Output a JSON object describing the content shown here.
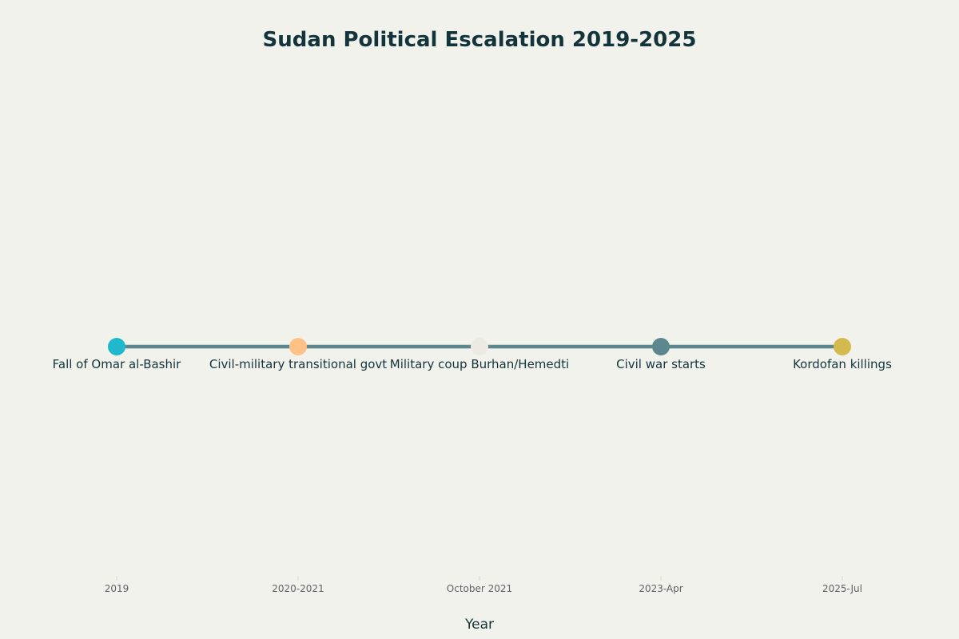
{
  "chart_data": {
    "type": "scatter",
    "title": "Sudan Political Escalation 2019-2025",
    "xlabel": "Year",
    "ylabel": "",
    "categories": [
      "2019",
      "2020-2021",
      "October 2021",
      "2023-Apr",
      "2025-Jul"
    ],
    "events": [
      "Fall of Omar al-Bashir",
      "Civil-military transitional govt",
      "Military coup Burhan/Hemedti",
      "Civil war starts",
      "Kordofan killings"
    ],
    "marker_colors": [
      "#1fb8cd",
      "#ffc185",
      "#eceae2",
      "#5d878f",
      "#d2ba4c"
    ],
    "line_color": "#5d878f",
    "show_grid": false,
    "show_legend": false
  }
}
